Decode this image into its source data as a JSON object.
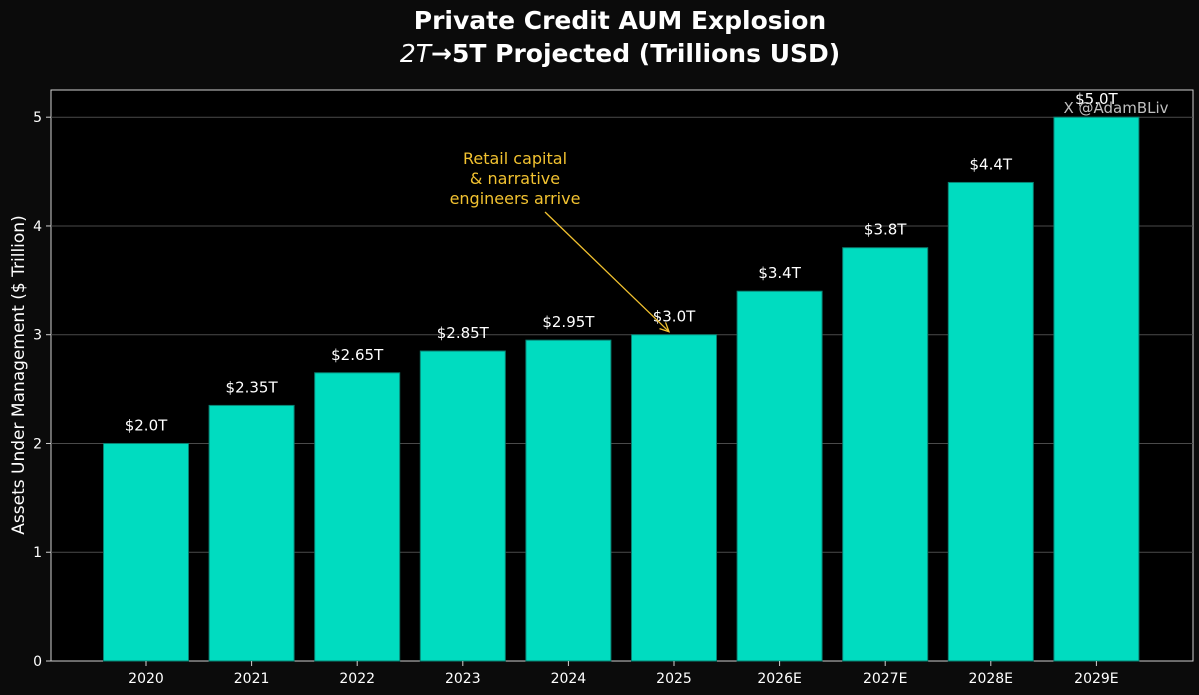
{
  "chart_data": {
    "type": "bar",
    "title": "Private Credit AUM Explosion",
    "subtitle_italic": "2T",
    "subtitle_rest": "→5T Projected (Trillions USD)",
    "xlabel": "",
    "ylabel": "Assets Under Management ($ Trillion)",
    "categories": [
      "2020",
      "2021",
      "2022",
      "2023",
      "2024",
      "2025",
      "2026E",
      "2027E",
      "2028E",
      "2029E"
    ],
    "values": [
      2.0,
      2.35,
      2.65,
      2.85,
      2.95,
      3.0,
      3.4,
      3.8,
      4.4,
      5.0
    ],
    "data_labels": [
      "$2.0T",
      "$2.35T",
      "$2.65T",
      "$2.85T",
      "$2.95T",
      "$3.0T",
      "$3.4T",
      "$3.8T",
      "$4.4T",
      "$5.0T"
    ],
    "ylim": [
      0,
      5.25
    ],
    "yticks": [
      0,
      1,
      2,
      3,
      4,
      5
    ],
    "grid": true,
    "bar_color": "#00dcc0",
    "background_color": "#000000",
    "annotation": {
      "lines": [
        "Retail capital",
        "& narrative",
        "engineers arrive"
      ],
      "target_category": "2025",
      "target_value": 3.0,
      "color": "#f2c230"
    },
    "watermark": "X @AdamBLiv"
  }
}
